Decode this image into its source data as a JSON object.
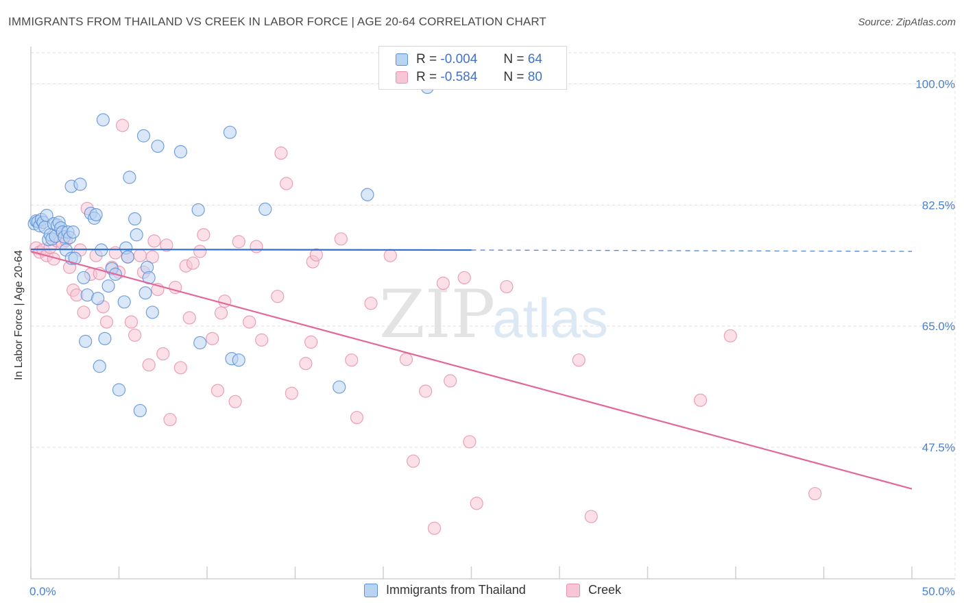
{
  "title": "IMMIGRANTS FROM THAILAND VS CREEK IN LABOR FORCE | AGE 20-64 CORRELATION CHART",
  "source": "Source: ZipAtlas.com",
  "legend": {
    "r_label": "R =",
    "n_label": "N =",
    "rows": [
      {
        "r": "-0.004",
        "n": "64"
      },
      {
        "r": "-0.584",
        "n": "80"
      }
    ]
  },
  "watermark": {
    "zip": "ZIP",
    "atlas": "atlas"
  },
  "colors": {
    "thailand_fill": "#b9d3f2",
    "thailand_stroke": "#5b8fd6",
    "thailand_line": "#2f6fd0",
    "creek_fill": "#f7c6d6",
    "creek_stroke": "#e890ad",
    "creek_line": "#e2679a",
    "axis_label": "#4a7fcf",
    "grid": "#dddddd"
  },
  "chart_data": {
    "type": "scatter",
    "title": "IMMIGRANTS FROM THAILAND VS CREEK IN LABOR FORCE | AGE 20-64 CORRELATION CHART",
    "xlabel": "",
    "ylabel": "In Labor Force | Age 20-64",
    "xlim": [
      0,
      50
    ],
    "ylim": [
      28.5,
      104.5
    ],
    "x_tick_labels": [
      "0.0%",
      "50.0%"
    ],
    "y_ticks": [
      47.5,
      65.0,
      82.5,
      100.0
    ],
    "y_tick_labels": [
      "47.5%",
      "65.0%",
      "82.5%",
      "100.0%"
    ],
    "grid": true,
    "legend_position": "top-center",
    "series": [
      {
        "name": "Immigrants from Thailand",
        "r": -0.004,
        "n": 64,
        "trend": {
          "x0": 0,
          "y0": 76.1,
          "x1": 25,
          "y1": 76.0,
          "dash_to_x": 50,
          "dash_y": 75.8
        },
        "points": [
          [
            0.2,
            79.8
          ],
          [
            0.3,
            80.2
          ],
          [
            0.4,
            80.1
          ],
          [
            0.5,
            79.5
          ],
          [
            0.6,
            80.4
          ],
          [
            0.7,
            80.0
          ],
          [
            0.8,
            79.3
          ],
          [
            0.9,
            81.0
          ],
          [
            1.0,
            77.5
          ],
          [
            1.1,
            78.2
          ],
          [
            1.2,
            77.6
          ],
          [
            1.3,
            79.8
          ],
          [
            1.4,
            78.0
          ],
          [
            1.5,
            79.6
          ],
          [
            1.6,
            80.0
          ],
          [
            1.7,
            79.2
          ],
          [
            1.8,
            78.6
          ],
          [
            1.9,
            77.9
          ],
          [
            2.0,
            76.0
          ],
          [
            2.1,
            78.6
          ],
          [
            2.2,
            77.8
          ],
          [
            2.3,
            74.8
          ],
          [
            2.4,
            78.6
          ],
          [
            2.5,
            74.8
          ],
          [
            2.3,
            85.2
          ],
          [
            2.8,
            85.5
          ],
          [
            3.0,
            72.0
          ],
          [
            3.1,
            62.8
          ],
          [
            3.2,
            69.5
          ],
          [
            3.4,
            81.3
          ],
          [
            3.6,
            80.6
          ],
          [
            3.7,
            81.1
          ],
          [
            3.8,
            69.0
          ],
          [
            3.9,
            59.2
          ],
          [
            4.0,
            76.0
          ],
          [
            4.1,
            94.8
          ],
          [
            4.2,
            63.2
          ],
          [
            4.4,
            70.8
          ],
          [
            4.6,
            73.3
          ],
          [
            4.8,
            72.5
          ],
          [
            5.0,
            55.8
          ],
          [
            5.3,
            68.5
          ],
          [
            5.4,
            76.3
          ],
          [
            5.5,
            75.0
          ],
          [
            5.6,
            86.5
          ],
          [
            5.9,
            80.5
          ],
          [
            6.0,
            78.2
          ],
          [
            6.2,
            52.8
          ],
          [
            6.4,
            92.5
          ],
          [
            6.5,
            69.8
          ],
          [
            6.6,
            73.5
          ],
          [
            6.7,
            72.0
          ],
          [
            6.9,
            67.0
          ],
          [
            7.2,
            91.0
          ],
          [
            8.5,
            90.2
          ],
          [
            9.5,
            81.8
          ],
          [
            9.6,
            62.6
          ],
          [
            11.3,
            93.0
          ],
          [
            11.4,
            60.3
          ],
          [
            11.8,
            60.1
          ],
          [
            13.3,
            81.9
          ],
          [
            17.5,
            56.2
          ],
          [
            19.1,
            84.0
          ],
          [
            22.5,
            99.5
          ]
        ]
      },
      {
        "name": "Creek",
        "r": -0.584,
        "n": 80,
        "trend": {
          "x0": 0,
          "y0": 75.8,
          "x1": 50,
          "y1": 41.5
        },
        "points": [
          [
            0.3,
            76.3
          ],
          [
            0.5,
            75.7
          ],
          [
            0.7,
            76.0
          ],
          [
            0.9,
            75.2
          ],
          [
            1.1,
            76.4
          ],
          [
            1.3,
            74.7
          ],
          [
            1.5,
            77.3
          ],
          [
            1.8,
            77.0
          ],
          [
            2.0,
            77.4
          ],
          [
            2.2,
            73.5
          ],
          [
            2.4,
            70.2
          ],
          [
            2.6,
            69.5
          ],
          [
            2.8,
            76.0
          ],
          [
            3.0,
            67.0
          ],
          [
            3.2,
            82.0
          ],
          [
            3.4,
            72.5
          ],
          [
            3.7,
            75.2
          ],
          [
            3.9,
            72.6
          ],
          [
            4.1,
            67.8
          ],
          [
            4.3,
            65.6
          ],
          [
            4.6,
            73.5
          ],
          [
            4.8,
            75.6
          ],
          [
            5.0,
            72.8
          ],
          [
            5.2,
            94.0
          ],
          [
            5.5,
            75.0
          ],
          [
            5.7,
            65.6
          ],
          [
            5.9,
            63.7
          ],
          [
            6.2,
            75.2
          ],
          [
            6.4,
            72.8
          ],
          [
            6.7,
            59.4
          ],
          [
            6.9,
            75.0
          ],
          [
            7.0,
            77.3
          ],
          [
            7.2,
            70.3
          ],
          [
            7.5,
            61.0
          ],
          [
            7.7,
            76.7
          ],
          [
            7.9,
            51.5
          ],
          [
            8.2,
            70.6
          ],
          [
            8.5,
            59.0
          ],
          [
            8.8,
            73.7
          ],
          [
            9.0,
            66.2
          ],
          [
            9.2,
            74.1
          ],
          [
            9.6,
            75.8
          ],
          [
            9.8,
            78.2
          ],
          [
            10.3,
            63.2
          ],
          [
            10.6,
            55.7
          ],
          [
            10.8,
            66.9
          ],
          [
            11.0,
            68.6
          ],
          [
            11.6,
            54.1
          ],
          [
            11.8,
            77.2
          ],
          [
            12.4,
            65.6
          ],
          [
            12.8,
            76.5
          ],
          [
            13.1,
            63.0
          ],
          [
            14.0,
            69.3
          ],
          [
            14.2,
            90.0
          ],
          [
            14.5,
            85.6
          ],
          [
            14.8,
            55.3
          ],
          [
            15.6,
            59.6
          ],
          [
            15.9,
            62.7
          ],
          [
            16.0,
            74.3
          ],
          [
            16.2,
            75.3
          ],
          [
            17.6,
            77.6
          ],
          [
            18.2,
            60.1
          ],
          [
            18.5,
            51.8
          ],
          [
            19.3,
            68.3
          ],
          [
            20.4,
            75.2
          ],
          [
            21.3,
            60.2
          ],
          [
            21.7,
            45.5
          ],
          [
            22.4,
            55.6
          ],
          [
            22.9,
            35.8
          ],
          [
            23.4,
            71.2
          ],
          [
            23.8,
            57.1
          ],
          [
            24.6,
            72.0
          ],
          [
            24.9,
            48.3
          ],
          [
            25.3,
            39.4
          ],
          [
            27.0,
            70.7
          ],
          [
            31.1,
            60.1
          ],
          [
            31.8,
            37.5
          ],
          [
            38.0,
            54.3
          ],
          [
            39.7,
            63.6
          ],
          [
            44.5,
            40.8
          ]
        ]
      }
    ]
  },
  "bottom_legend": [
    {
      "label": "Immigrants from Thailand"
    },
    {
      "label": "Creek"
    }
  ],
  "y_axis_label": "In Labor Force | Age 20-64"
}
